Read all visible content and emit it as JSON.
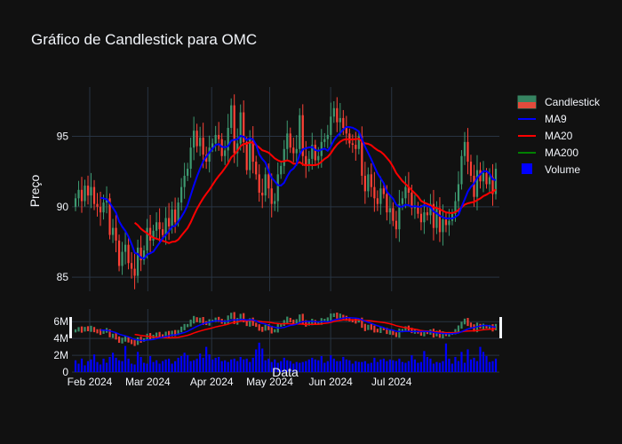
{
  "chart_data": {
    "type": "candlestick",
    "title": "Gráfico de Candlestick para OMC",
    "xlabel": "Data",
    "ylabel": "Preço",
    "x_ticks": [
      "Feb 2024",
      "Mar 2024",
      "Apr 2024",
      "May 2024",
      "Jun 2024",
      "Jul 2024"
    ],
    "price_ylim": [
      84,
      98.5
    ],
    "price_y_ticks": [
      85,
      90,
      95
    ],
    "volume_ylim": [
      0,
      7.5
    ],
    "volume_y_ticks": [
      "0",
      "2M",
      "4M",
      "6M"
    ],
    "legend": {
      "placement": "top-right",
      "entries": [
        "Candlestick",
        "MA9",
        "MA20",
        "MA200",
        "Volume"
      ]
    },
    "colors": {
      "increasing": "#3d9970",
      "decreasing": "#ff4136",
      "ma9": "#0000ff",
      "ma20": "#ff0000",
      "ma200": "#008000",
      "volume": "#0000ff"
    },
    "close": [
      90.6,
      91.2,
      90.4,
      91.5,
      90.8,
      91.4,
      90.2,
      90.0,
      89.6,
      90.3,
      90.6,
      88.0,
      88.5,
      87.6,
      85.8,
      86.8,
      87.3,
      86.0,
      85.6,
      85.1,
      87.1,
      86.2,
      86.9,
      88.5,
      87.6,
      88.3,
      88.9,
      88.4,
      88.0,
      89.2,
      88.6,
      89.8,
      88.9,
      90.3,
      91.4,
      92.2,
      92.7,
      94.2,
      95.4,
      94.3,
      94.9,
      93.7,
      93.2,
      94.2,
      94.5,
      95.1,
      94.8,
      93.6,
      94.0,
      95.6,
      97.2,
      93.8,
      94.5,
      96.7,
      94.6,
      92.6,
      94.8,
      93.2,
      92.3,
      91.0,
      90.8,
      92.3,
      91.3,
      90.2,
      90.4,
      92.3,
      92.9,
      94.1,
      95.2,
      94.2,
      93.8,
      94.1,
      96.5,
      93.6,
      93.0,
      93.4,
      94.4,
      93.3,
      93.6,
      94.6,
      94.8,
      95.1,
      96.4,
      97.0,
      96.0,
      96.3,
      95.6,
      95.2,
      94.5,
      94.4,
      94.1,
      95.0,
      92.2,
      91.1,
      92.3,
      91.4,
      90.6,
      90.2,
      91.3,
      90.9,
      89.6,
      89.9,
      89.0,
      88.4,
      90.2,
      90.6,
      91.4,
      91.0,
      89.9,
      90.0,
      89.5,
      88.9,
      89.6,
      89.4,
      90.2,
      88.5,
      89.9,
      88.2,
      89.1,
      88.7,
      89.0,
      89.5,
      90.4,
      91.6,
      93.6,
      94.6,
      93.2,
      92.2,
      90.7,
      92.6,
      91.8,
      92.4,
      91.6,
      92.1,
      90.9,
      92.7
    ],
    "volume": [
      1.4,
      1.0,
      1.6,
      0.8,
      1.3,
      1.5,
      2.1,
      1.2,
      0.9,
      1.6,
      1.1,
      1.8,
      2.3,
      1.7,
      1.4,
      1.3,
      3.1,
      1.6,
      1.0,
      0.9,
      2.4,
      1.8,
      1.1,
      1.0,
      1.9,
      1.2,
      1.4,
      1.0,
      1.3,
      1.5,
      1.6,
      1.0,
      1.3,
      1.7,
      1.9,
      2.3,
      2.0,
      1.3,
      1.4,
      1.6,
      2.2,
      1.7,
      3.0,
      2.1,
      1.5,
      1.7,
      1.8,
      1.3,
      1.4,
      1.2,
      1.5,
      1.6,
      1.3,
      1.8,
      1.5,
      1.6,
      1.2,
      1.7,
      2.7,
      3.5,
      2.8,
      1.4,
      1.6,
      1.2,
      1.5,
      1.1,
      1.3,
      1.7,
      1.4,
      1.3,
      1.0,
      1.2,
      1.1,
      1.2,
      1.3,
      1.5,
      1.7,
      1.5,
      1.4,
      1.9,
      1.1,
      1.3,
      2.0,
      1.6,
      1.3,
      1.3,
      1.8,
      1.5,
      1.4,
      1.0,
      1.3,
      1.2,
      1.2,
      1.3,
      1.0,
      1.1,
      1.7,
      1.2,
      1.5,
      1.6,
      1.3,
      1.5,
      1.4,
      1.3,
      1.6,
      1.2,
      1.1,
      1.3,
      2.0,
      1.5,
      1.1,
      1.2,
      2.5,
      1.8,
      1.6,
      1.0,
      1.2,
      1.1,
      1.3,
      3.4,
      1.6,
      1.0,
      1.8,
      1.3,
      2.4,
      1.1,
      2.7,
      1.5,
      1.7,
      1.3,
      3.0,
      2.4,
      1.9,
      1.2,
      1.3,
      1.6
    ]
  }
}
